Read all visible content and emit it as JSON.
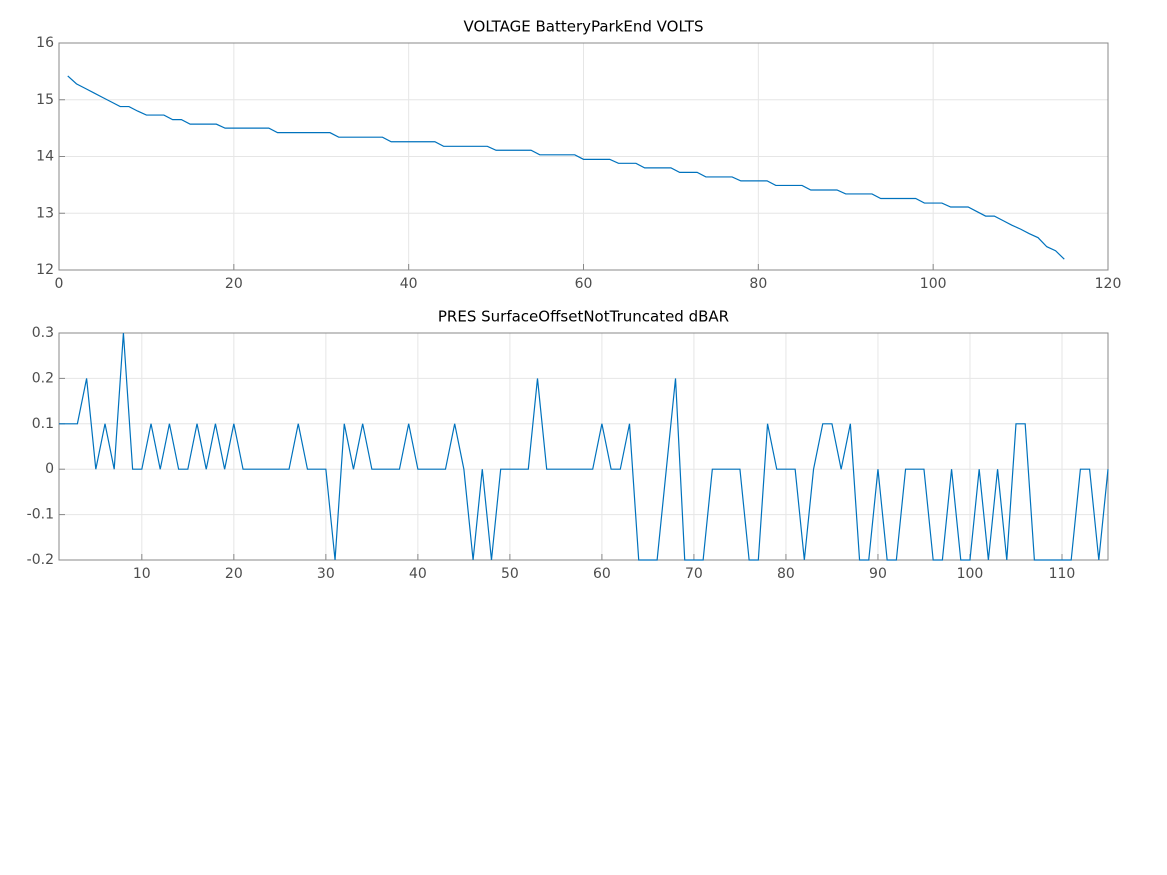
{
  "chart_data": [
    {
      "type": "line",
      "title": "VOLTAGE BatteryParkEnd VOLTS",
      "color": "#0072bd",
      "grid": true,
      "x": [
        1,
        2,
        3,
        4,
        5,
        6,
        7,
        8,
        9,
        10,
        11,
        12,
        13,
        14,
        15,
        16,
        17,
        18,
        19,
        20,
        21,
        22,
        23,
        24,
        25,
        26,
        27,
        28,
        29,
        30,
        31,
        32,
        33,
        34,
        35,
        36,
        37,
        38,
        39,
        40,
        41,
        42,
        43,
        44,
        45,
        46,
        47,
        48,
        49,
        50,
        51,
        52,
        53,
        54,
        55,
        56,
        57,
        58,
        59,
        60,
        61,
        62,
        63,
        64,
        65,
        66,
        67,
        68,
        69,
        70,
        71,
        72,
        73,
        74,
        75,
        76,
        77,
        78,
        79,
        80,
        81,
        82,
        83,
        84,
        85,
        86,
        87,
        88,
        89,
        90,
        91,
        92,
        93,
        94,
        95,
        96,
        97,
        98,
        99,
        100,
        101,
        102,
        103,
        104,
        105,
        106,
        107,
        108,
        109,
        110,
        111,
        112,
        113,
        114,
        115
      ],
      "values": [
        15.42,
        15.28,
        15.2,
        15.12,
        15.04,
        14.96,
        14.88,
        14.88,
        14.8,
        14.73,
        14.73,
        14.73,
        14.65,
        14.65,
        14.57,
        14.57,
        14.57,
        14.57,
        14.5,
        14.5,
        14.5,
        14.5,
        14.5,
        14.5,
        14.42,
        14.42,
        14.42,
        14.42,
        14.42,
        14.42,
        14.42,
        14.34,
        14.34,
        14.34,
        14.34,
        14.34,
        14.34,
        14.26,
        14.26,
        14.26,
        14.26,
        14.26,
        14.26,
        14.18,
        14.18,
        14.18,
        14.18,
        14.18,
        14.18,
        14.11,
        14.11,
        14.11,
        14.11,
        14.11,
        14.03,
        14.03,
        14.03,
        14.03,
        14.03,
        13.95,
        13.95,
        13.95,
        13.95,
        13.88,
        13.88,
        13.88,
        13.8,
        13.8,
        13.8,
        13.8,
        13.72,
        13.72,
        13.72,
        13.64,
        13.64,
        13.64,
        13.64,
        13.57,
        13.57,
        13.57,
        13.57,
        13.49,
        13.49,
        13.49,
        13.49,
        13.41,
        13.41,
        13.41,
        13.41,
        13.34,
        13.34,
        13.34,
        13.34,
        13.26,
        13.26,
        13.26,
        13.26,
        13.26,
        13.18,
        13.18,
        13.18,
        13.11,
        13.11,
        13.11,
        13.03,
        12.95,
        12.95,
        12.87,
        12.79,
        12.72,
        12.64,
        12.57,
        12.41,
        12.34,
        12.19
      ],
      "xlim": [
        0,
        120
      ],
      "xticks": [
        0,
        20,
        40,
        60,
        80,
        100,
        120
      ],
      "ylim": [
        12,
        16
      ],
      "yticks": [
        12,
        13,
        14,
        15,
        16
      ]
    },
    {
      "type": "line",
      "title": "PRES SurfaceOffsetNotTruncated dBAR",
      "color": "#0072bd",
      "grid": true,
      "x": [
        1,
        2,
        3,
        4,
        5,
        6,
        7,
        8,
        9,
        10,
        11,
        12,
        13,
        14,
        15,
        16,
        17,
        18,
        19,
        20,
        21,
        22,
        23,
        24,
        25,
        26,
        27,
        28,
        29,
        30,
        31,
        32,
        33,
        34,
        35,
        36,
        37,
        38,
        39,
        40,
        41,
        42,
        43,
        44,
        45,
        46,
        47,
        48,
        49,
        50,
        51,
        52,
        53,
        54,
        55,
        56,
        57,
        58,
        59,
        60,
        61,
        62,
        63,
        64,
        65,
        66,
        67,
        68,
        69,
        70,
        71,
        72,
        73,
        74,
        75,
        76,
        77,
        78,
        79,
        80,
        81,
        82,
        83,
        84,
        85,
        86,
        87,
        88,
        89,
        90,
        91,
        92,
        93,
        94,
        95,
        96,
        97,
        98,
        99,
        100,
        101,
        102,
        103,
        104,
        105,
        106,
        107,
        108,
        109,
        110,
        111,
        112,
        113,
        114,
        115
      ],
      "values": [
        0.1,
        0.1,
        0.1,
        0.2,
        0,
        0.1,
        0,
        0.3,
        0,
        0,
        0.1,
        0,
        0.1,
        0,
        0,
        0.1,
        0,
        0.1,
        0,
        0.1,
        0,
        0,
        0,
        0,
        0,
        0,
        0.1,
        0,
        0,
        0,
        -0.2,
        0.1,
        0,
        0.1,
        0,
        0,
        0,
        0,
        0.1,
        0,
        0,
        0,
        0,
        0.1,
        0,
        -0.2,
        0,
        -0.2,
        0,
        0,
        0,
        0,
        0.2,
        0,
        0,
        0,
        0,
        0,
        0,
        0.1,
        0,
        0,
        0.1,
        -0.2,
        -0.2,
        -0.2,
        0,
        0.2,
        -0.2,
        -0.2,
        -0.2,
        0,
        0,
        0,
        0,
        -0.2,
        -0.2,
        0.1,
        0,
        0,
        0,
        -0.2,
        0,
        0.1,
        0.1,
        0,
        0.1,
        -0.2,
        -0.2,
        0,
        -0.2,
        -0.2,
        0,
        0,
        0,
        -0.2,
        -0.2,
        0,
        -0.2,
        -0.2,
        0,
        -0.2,
        0,
        -0.2,
        0.1,
        0.1,
        -0.2,
        -0.2,
        -0.2,
        -0.2,
        -0.2,
        0,
        0,
        -0.2,
        0
      ],
      "xlim": [
        1,
        115
      ],
      "xticks": [
        10,
        20,
        30,
        40,
        50,
        60,
        70,
        80,
        90,
        100,
        110
      ],
      "ylim": [
        -0.2,
        0.3
      ],
      "yticks": [
        -0.2,
        -0.1,
        0,
        0.1,
        0.2,
        0.3
      ]
    }
  ]
}
